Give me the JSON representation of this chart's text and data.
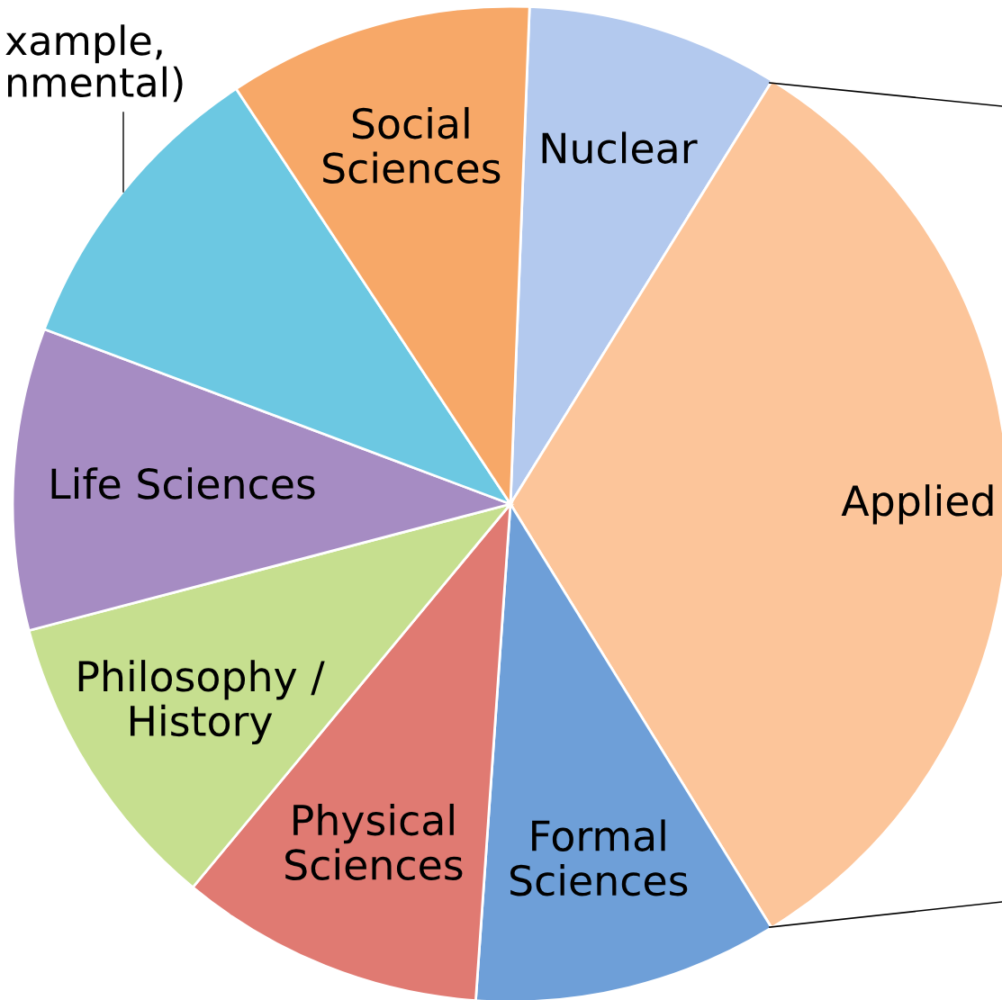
{
  "chart_data": {
    "type": "pie",
    "categories": [
      "Nuclear",
      "Applied",
      "Formal\nSciences",
      "Physical\nSciences",
      "Philosophy /\nHistory",
      "Life Sciences",
      "xample,\nnmental)",
      "Social\nSciences"
    ],
    "values": [
      8.2,
      32.4,
      9.9,
      9.9,
      9.9,
      9.8,
      10.0,
      9.9
    ],
    "colors": [
      "#b3c9ee",
      "#fcc59a",
      "#6e9fd8",
      "#e07a72",
      "#c6df8f",
      "#a68cc3",
      "#6cc8e2",
      "#f7a868"
    ],
    "legend": false
  }
}
